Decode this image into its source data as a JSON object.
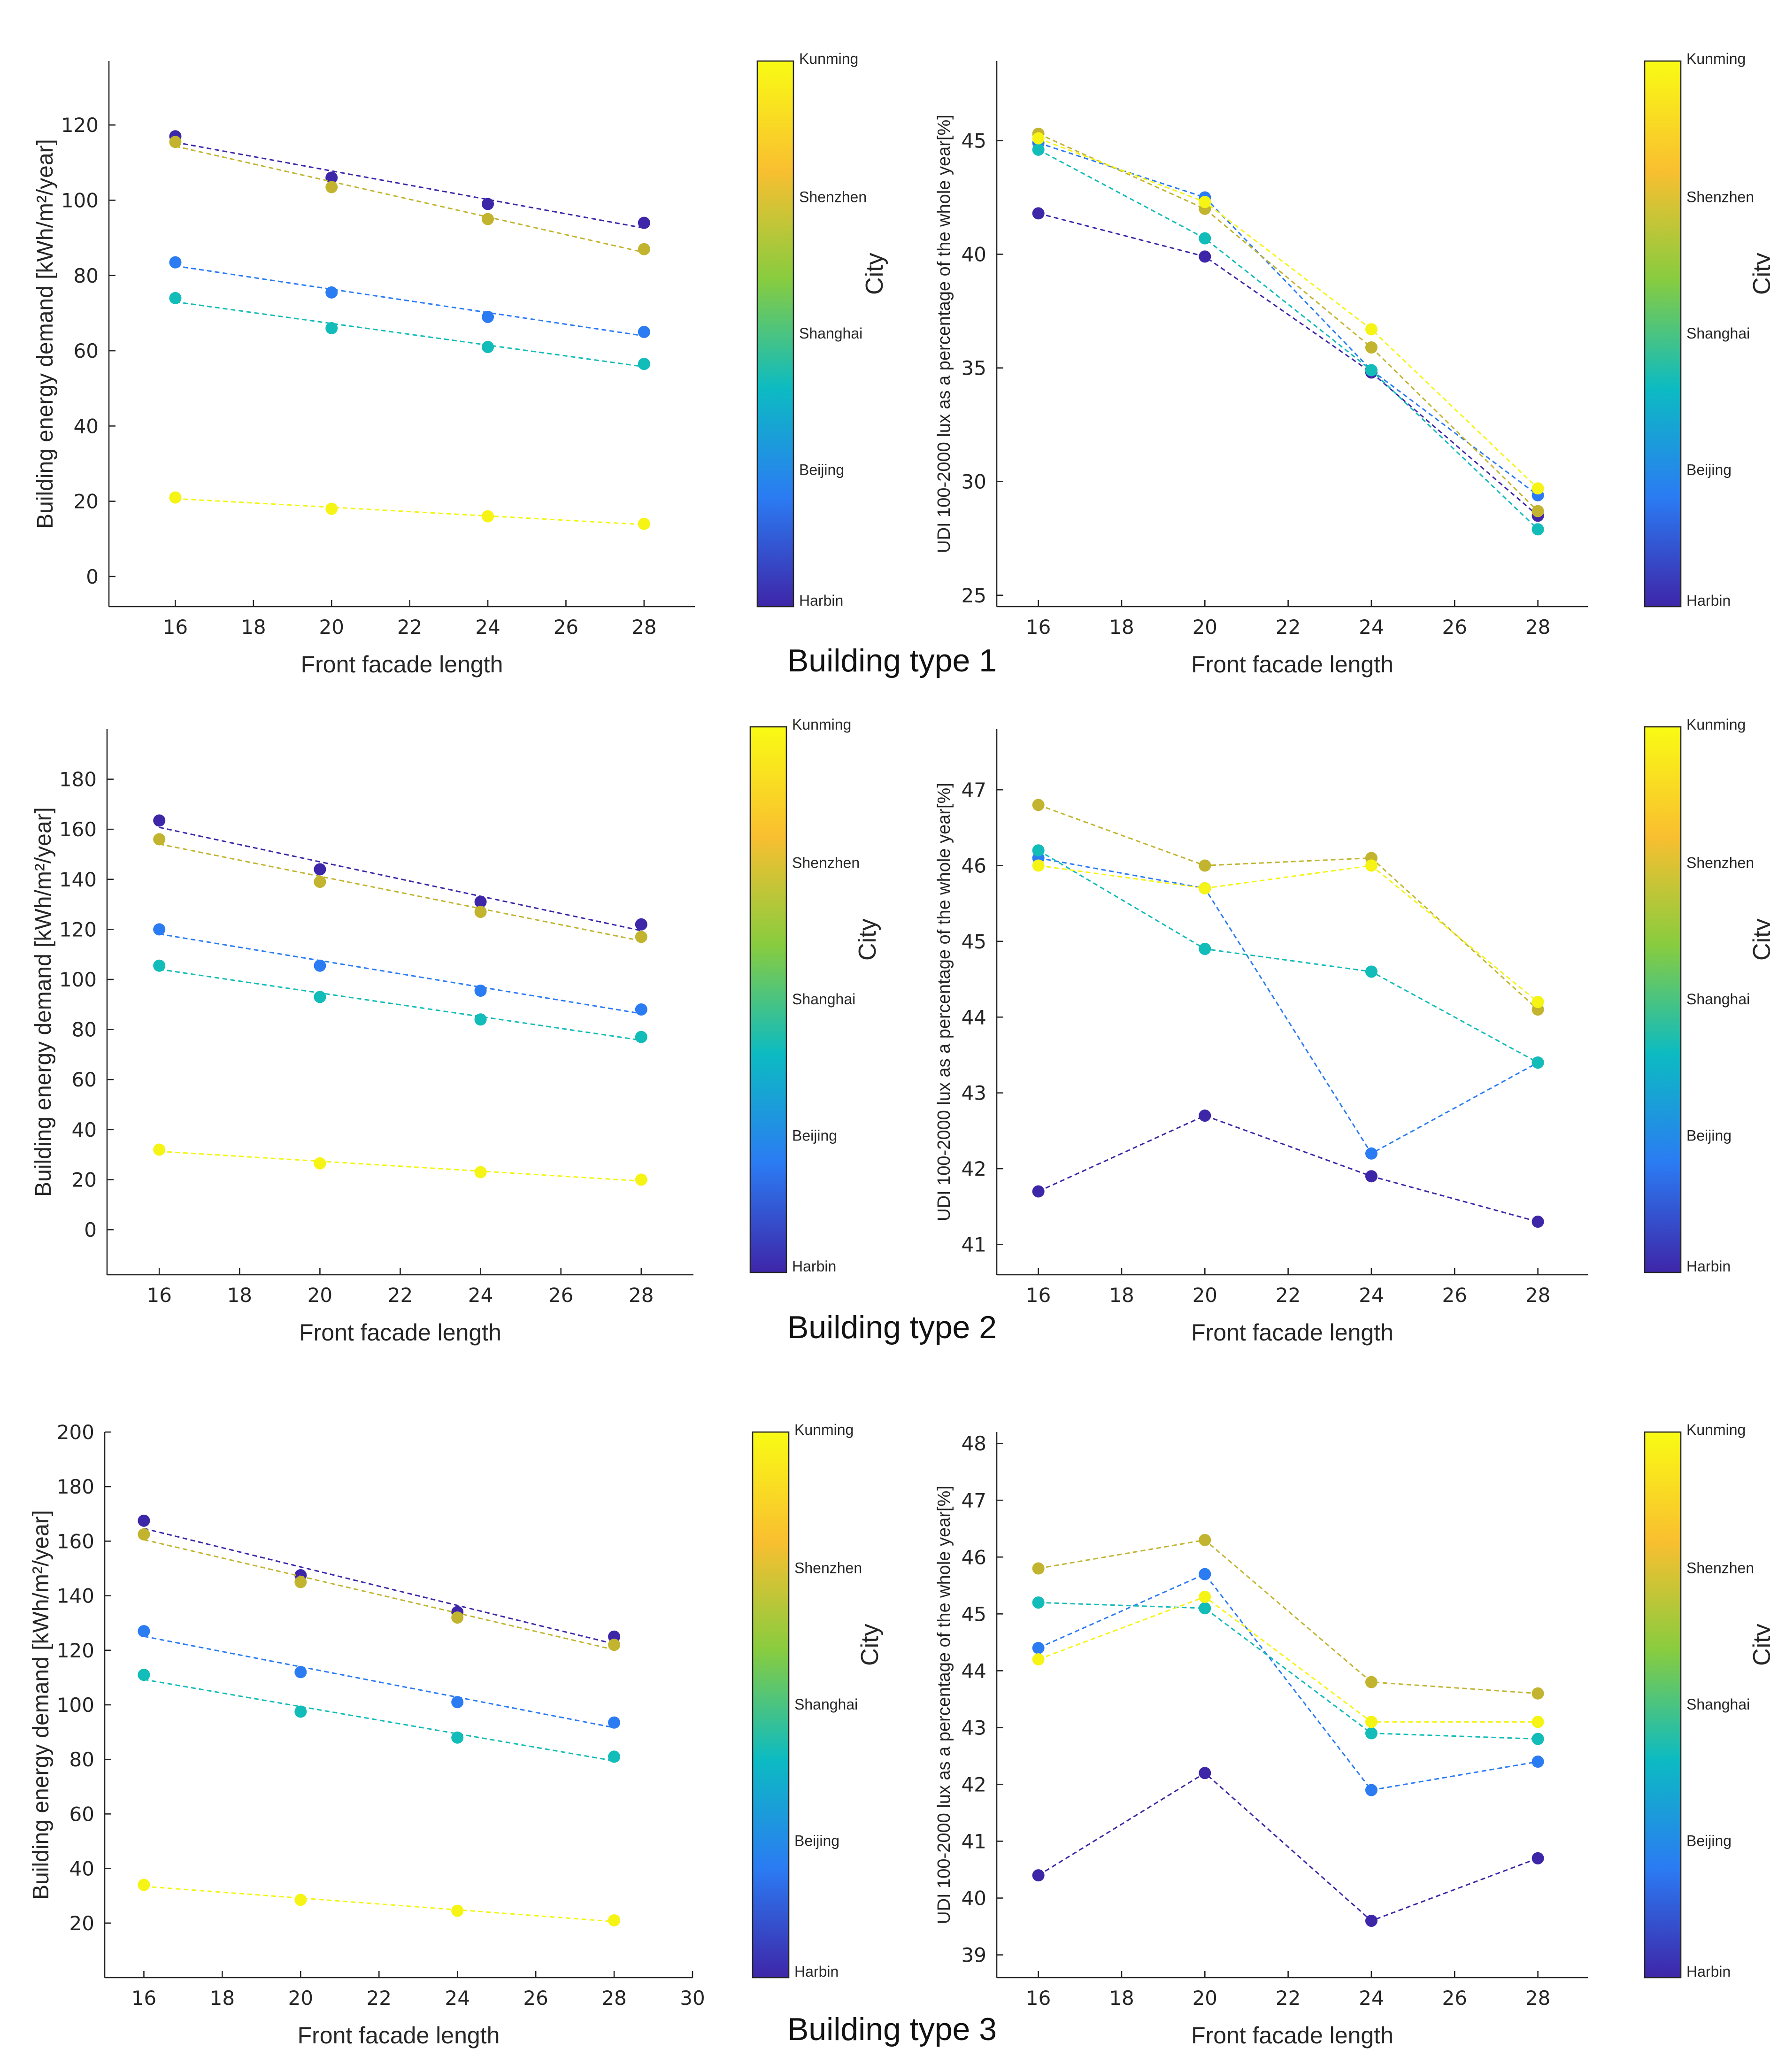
{
  "figure": {
    "colorbar": {
      "title": "City",
      "stops": [
        "#3e26a8",
        "#2b7bf3",
        "#0cbbc2",
        "#88cc3f",
        "#f9bf30",
        "#f9fb14"
      ],
      "labels": [
        "Kunming",
        "Shenzhen",
        "Shanghai",
        "Beijing",
        "Harbin"
      ]
    },
    "city_colors": {
      "Harbin": "#3e26a8",
      "Beijing": "#2b7bf3",
      "Shanghai": "#12bcb8",
      "Shenzhen": "#c2b42f",
      "Kunming": "#f5f414"
    },
    "building_types": [
      "Building type 1",
      "Building type 2",
      "Building type 3"
    ]
  },
  "chart_data": [
    {
      "id": "bt1-energy",
      "type": "scatter",
      "title": "",
      "xlabel": "Front facade length",
      "ylabel": "Building energy demand [kWh/m²/year]",
      "xlim": [
        14.3,
        29.3
      ],
      "ylim": [
        -8,
        137
      ],
      "xticks": [
        16,
        18,
        20,
        22,
        24,
        26,
        28
      ],
      "yticks": [
        0,
        20,
        40,
        60,
        80,
        100,
        120
      ],
      "x": [
        16,
        20,
        24,
        28
      ],
      "fit": true,
      "series": [
        {
          "name": "Harbin",
          "values": [
            117,
            106,
            99,
            94
          ]
        },
        {
          "name": "Shenzhen",
          "values": [
            115.5,
            103.5,
            95,
            87
          ]
        },
        {
          "name": "Beijing",
          "values": [
            83.5,
            75.5,
            69,
            65
          ]
        },
        {
          "name": "Shanghai",
          "values": [
            74,
            66,
            61,
            56.5
          ]
        },
        {
          "name": "Kunming",
          "values": [
            21,
            18,
            16,
            14
          ]
        }
      ]
    },
    {
      "id": "bt1-udi",
      "type": "line",
      "title": "",
      "xlabel": "Front facade length",
      "ylabel": "UDI 100-2000 lux as a percentage of the whole year[%]",
      "xlim": [
        15,
        29.2
      ],
      "ylim": [
        24.5,
        48.5
      ],
      "xticks": [
        16,
        18,
        20,
        22,
        24,
        26,
        28
      ],
      "yticks": [
        25,
        30,
        35,
        40,
        45
      ],
      "x": [
        16,
        20,
        24,
        28
      ],
      "fit": false,
      "series": [
        {
          "name": "Harbin",
          "values": [
            41.8,
            39.9,
            34.8,
            28.5
          ]
        },
        {
          "name": "Beijing",
          "values": [
            44.9,
            42.5,
            34.9,
            29.4
          ]
        },
        {
          "name": "Shanghai",
          "values": [
            44.6,
            40.7,
            34.9,
            27.9
          ]
        },
        {
          "name": "Shenzhen",
          "values": [
            45.3,
            42.0,
            35.9,
            28.7
          ]
        },
        {
          "name": "Kunming",
          "values": [
            45.1,
            42.3,
            36.7,
            29.7
          ]
        }
      ]
    },
    {
      "id": "bt2-energy",
      "type": "scatter",
      "title": "",
      "xlabel": "Front facade length",
      "ylabel": "Building energy demand [kWh/m²/year]",
      "xlim": [
        14.7,
        29.3
      ],
      "ylim": [
        -18,
        200
      ],
      "xticks": [
        16,
        18,
        20,
        22,
        24,
        26,
        28
      ],
      "yticks": [
        0,
        20,
        40,
        60,
        80,
        100,
        120,
        140,
        160,
        180
      ],
      "x": [
        16,
        20,
        24,
        28
      ],
      "fit": true,
      "series": [
        {
          "name": "Harbin",
          "values": [
            163.5,
            144,
            131,
            122
          ]
        },
        {
          "name": "Shenzhen",
          "values": [
            156,
            139,
            127,
            117
          ]
        },
        {
          "name": "Beijing",
          "values": [
            120,
            105.5,
            95.5,
            88
          ]
        },
        {
          "name": "Shanghai",
          "values": [
            105.5,
            93,
            84,
            77
          ]
        },
        {
          "name": "Kunming",
          "values": [
            32,
            26.5,
            23,
            20
          ]
        }
      ]
    },
    {
      "id": "bt2-udi",
      "type": "line",
      "title": "",
      "xlabel": "Front facade length",
      "ylabel": "UDI 100-2000 lux as a percentage of the whole year[%]",
      "xlim": [
        15,
        29.2
      ],
      "ylim": [
        40.6,
        47.8
      ],
      "xticks": [
        16,
        18,
        20,
        22,
        24,
        26,
        28
      ],
      "yticks": [
        41,
        42,
        43,
        44,
        45,
        46,
        47
      ],
      "x": [
        16,
        20,
        24,
        28
      ],
      "fit": false,
      "series": [
        {
          "name": "Harbin",
          "values": [
            41.7,
            42.7,
            41.9,
            41.3
          ]
        },
        {
          "name": "Beijing",
          "values": [
            46.1,
            45.7,
            42.2,
            43.4
          ]
        },
        {
          "name": "Shanghai",
          "values": [
            46.2,
            44.9,
            44.6,
            43.4
          ]
        },
        {
          "name": "Shenzhen",
          "values": [
            46.8,
            46.0,
            46.1,
            44.1
          ]
        },
        {
          "name": "Kunming",
          "values": [
            46.0,
            45.7,
            46.0,
            44.2
          ]
        }
      ]
    },
    {
      "id": "bt3-energy",
      "type": "scatter",
      "title": "",
      "xlabel": "Front facade length",
      "ylabel": "Building energy demand [kWh/m²/year]",
      "xlim": [
        15,
        30
      ],
      "ylim": [
        0,
        200
      ],
      "xticks": [
        16,
        18,
        20,
        22,
        24,
        26,
        28,
        30
      ],
      "yticks": [
        20,
        40,
        60,
        80,
        100,
        120,
        140,
        160,
        180,
        200
      ],
      "x": [
        16,
        20,
        24,
        28
      ],
      "fit": true,
      "series": [
        {
          "name": "Harbin",
          "values": [
            167.5,
            147.5,
            134,
            125
          ]
        },
        {
          "name": "Shenzhen",
          "values": [
            162.5,
            145,
            132,
            122
          ]
        },
        {
          "name": "Beijing",
          "values": [
            127,
            112,
            101,
            93.5
          ]
        },
        {
          "name": "Shanghai",
          "values": [
            111,
            97.5,
            88,
            81
          ]
        },
        {
          "name": "Kunming",
          "values": [
            34,
            28.5,
            24.5,
            21
          ]
        }
      ]
    },
    {
      "id": "bt3-udi",
      "type": "line",
      "title": "",
      "xlabel": "Front facade length",
      "ylabel": "UDI 100-2000 lux as a percentage of the whole year[%]",
      "xlim": [
        15,
        29.2
      ],
      "ylim": [
        38.6,
        48.2
      ],
      "xticks": [
        16,
        18,
        20,
        22,
        24,
        26,
        28
      ],
      "yticks": [
        39,
        40,
        41,
        42,
        43,
        44,
        45,
        46,
        47,
        48
      ],
      "x": [
        16,
        20,
        24,
        28
      ],
      "fit": false,
      "series": [
        {
          "name": "Harbin",
          "values": [
            40.4,
            42.2,
            39.6,
            40.7
          ]
        },
        {
          "name": "Beijing",
          "values": [
            44.4,
            45.7,
            41.9,
            42.4
          ]
        },
        {
          "name": "Shanghai",
          "values": [
            45.2,
            45.1,
            42.9,
            42.8
          ]
        },
        {
          "name": "Shenzhen",
          "values": [
            45.8,
            46.3,
            43.8,
            43.6
          ]
        },
        {
          "name": "Kunming",
          "values": [
            44.2,
            45.3,
            43.1,
            43.1
          ]
        }
      ]
    }
  ]
}
